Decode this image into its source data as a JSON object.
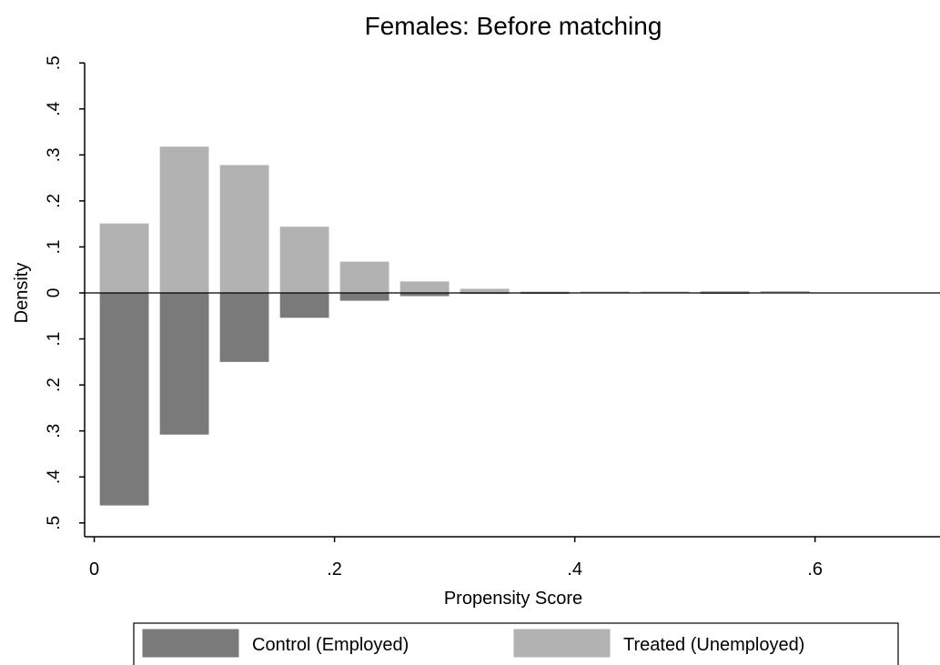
{
  "chart_data": {
    "type": "histogram",
    "title": "Females: Before matching",
    "x_label": "Propensity Score",
    "y_label": "Density",
    "bins": [
      0,
      0.05,
      0.1,
      0.15,
      0.2,
      0.25,
      0.3,
      0.35,
      0.4,
      0.45,
      0.5,
      0.55,
      0.6
    ],
    "series": [
      {
        "name": "Control (Employed)",
        "color": "#7a7a7a",
        "values": [
          -0.461,
          -0.307,
          -0.149,
          -0.053,
          -0.016,
          -0.006,
          -0.001,
          -0.001,
          0,
          0,
          -0.001,
          0
        ]
      },
      {
        "name": "Treated (Unemployed)",
        "color": "#b2b2b2",
        "values": [
          0.15,
          0.317,
          0.277,
          0.143,
          0.067,
          0.024,
          0.008,
          0.002,
          0.002,
          0.002,
          0.003,
          0.003
        ]
      }
    ],
    "xlim": [
      -0.008,
      0.704
    ],
    "ylim": [
      -0.53,
      0.53
    ],
    "xticks": [
      0,
      {
        "value": 0.2,
        "label": ".2"
      },
      {
        "value": 0.4,
        "label": ".4"
      },
      {
        "value": 0.6,
        "label": ".6"
      }
    ],
    "yticks": [
      {
        "value": -0.5,
        "label": ".5"
      },
      {
        "value": -0.4,
        "label": ".4"
      },
      {
        "value": -0.3,
        "label": ".3"
      },
      {
        "value": -0.2,
        "label": ".2"
      },
      {
        "value": -0.1,
        "label": ".1"
      },
      0,
      {
        "value": 0.1,
        "label": ".1"
      },
      {
        "value": 0.2,
        "label": ".2"
      },
      {
        "value": 0.3,
        "label": ".3"
      },
      {
        "value": 0.4,
        "label": ".4"
      },
      {
        "value": 0.5,
        "label": ".5"
      }
    ],
    "grid": false,
    "legend": "bottom"
  }
}
